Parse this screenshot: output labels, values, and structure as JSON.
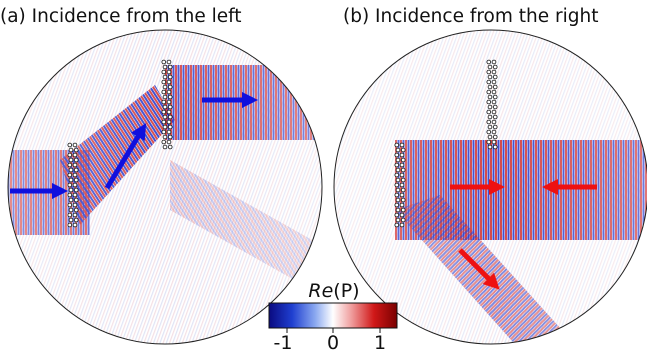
{
  "panels": [
    {
      "title": "(a) Incidence from the left",
      "arrow_color": "#1010dd",
      "arrow_icon": "arrow-icon",
      "arrows": [
        "incident wave",
        "deflected wave",
        "transmitted wave"
      ]
    },
    {
      "title": "(b) Incidence from the right",
      "arrow_color": "#ee1111",
      "arrow_icon": "arrow-icon",
      "arrows": [
        "incident wave",
        "opposing wave",
        "deflected wave"
      ]
    }
  ],
  "colorbar": {
    "title_italic": "Re",
    "title_rest": "(P)",
    "ticks": [
      "-1",
      "0",
      "1"
    ],
    "colors": [
      "#0a0a80",
      "#1f3fd0",
      "#8aa8f0",
      "#ffffff",
      "#f0a0a0",
      "#d01818",
      "#7a0000"
    ]
  }
}
